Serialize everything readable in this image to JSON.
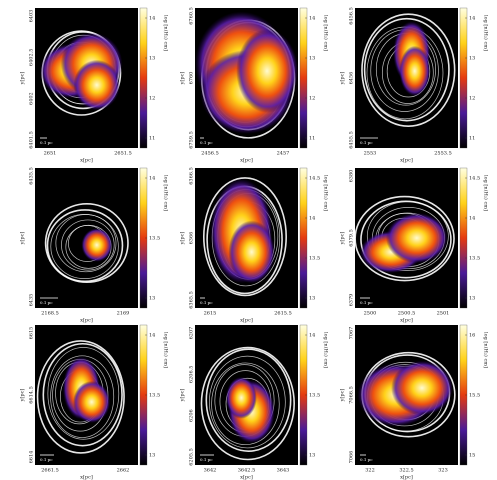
{
  "x_label": "x[pc]",
  "y_label": "y[pc]",
  "colorbar_label": "log [n(H₂) cm]",
  "scale_label": "0.1 pc",
  "panels": [
    {
      "yticks": [
        "6403",
        "6402.5",
        "6402",
        "6401.5"
      ],
      "xticks": [
        "2651",
        "2651.5"
      ],
      "cbticks": [
        "14",
        "13",
        "12",
        "11"
      ]
    },
    {
      "yticks": [
        "6760.5",
        "6760",
        "6759.5"
      ],
      "xticks": [
        "2456.5",
        "2457"
      ],
      "cbticks": [
        "14",
        "13",
        "12",
        "11"
      ]
    },
    {
      "yticks": [
        "6456.5",
        "6456",
        "6455.5"
      ],
      "xticks": [
        "2553",
        "2553.5"
      ],
      "cbticks": [
        "14",
        "13",
        "12",
        "11"
      ]
    },
    {
      "yticks": [
        "6435.5",
        "6435"
      ],
      "xticks": [
        "2168.5",
        "2169"
      ],
      "cbticks": [
        "14",
        "13.5",
        "13"
      ]
    },
    {
      "yticks": [
        "6366.5",
        "6366",
        "6365.5"
      ],
      "xticks": [
        "2615",
        "2615.5"
      ],
      "cbticks": [
        "14.5",
        "14",
        "13.5",
        "13"
      ]
    },
    {
      "yticks": [
        "6380",
        "6379.5",
        "6379"
      ],
      "xticks": [
        "2500",
        "2500.5",
        "2501"
      ],
      "cbticks": [
        "14.5",
        "14",
        "13.5",
        "13"
      ]
    },
    {
      "yticks": [
        "6615",
        "6614.5",
        "6614"
      ],
      "xticks": [
        "2661.5",
        "2662"
      ],
      "cbticks": [
        "14",
        "13.5",
        "13"
      ]
    },
    {
      "yticks": [
        "6207",
        "6206.5",
        "6206",
        "6205.5"
      ],
      "xticks": [
        "3642",
        "3642.5",
        "3643"
      ],
      "cbticks": [
        "14",
        "13.5",
        "13"
      ]
    },
    {
      "yticks": [
        "7067",
        "7066.5",
        "7066"
      ],
      "xticks": [
        "322",
        "322.5",
        "323"
      ],
      "cbticks": [
        "16",
        "15.5",
        "15"
      ]
    }
  ]
}
